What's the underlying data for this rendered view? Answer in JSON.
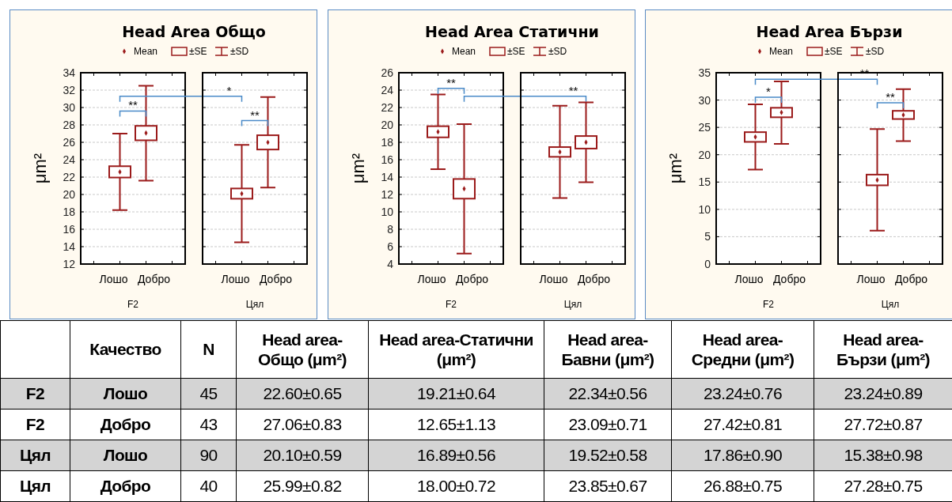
{
  "chart_data": [
    {
      "type": "box",
      "title": "Head Area Общо",
      "ylabel": "μm²",
      "xlabel": "F2",
      "categories": [
        "Лошо",
        "Добро"
      ],
      "color": "#9b1b1b",
      "ylim": [
        12,
        34
      ],
      "yticks": [
        12,
        14,
        16,
        18,
        20,
        22,
        24,
        26,
        28,
        30,
        32,
        34
      ],
      "grid": "y",
      "marker": "diamond",
      "boxes": [
        {
          "low": 18.2,
          "q1": 21.95,
          "q3": 23.25,
          "high": 27.0,
          "mean": 22.6
        },
        {
          "low": 21.6,
          "q1": 26.23,
          "q3": 27.89,
          "high": 32.5,
          "mean": 27.06
        }
      ],
      "annotations": [
        "Mean",
        "±SE",
        "±SD",
        "**",
        "*"
      ]
    },
    {
      "type": "box",
      "xlabel": "Цял",
      "categories": [
        "Лошо",
        "Добро"
      ],
      "color": "#9b1b1b",
      "ylim": [
        12,
        34
      ],
      "yticks": [
        12,
        14,
        16,
        18,
        20,
        22,
        24,
        26,
        28,
        30,
        32,
        34
      ],
      "grid": "y",
      "marker": "diamond",
      "tick_labels": "x",
      "boxes": [
        {
          "low": 14.5,
          "q1": 19.51,
          "q3": 20.69,
          "high": 25.7,
          "mean": 20.1
        },
        {
          "low": 20.8,
          "q1": 25.17,
          "q3": 26.81,
          "high": 31.2,
          "mean": 25.99
        }
      ],
      "annotations": [
        "**"
      ]
    },
    {
      "type": "box",
      "title": "Head Area Статични",
      "ylabel": "μm²",
      "xlabel": "F2",
      "categories": [
        "Лошо",
        "Добро"
      ],
      "color": "#9b1b1b",
      "ylim": [
        4,
        26
      ],
      "yticks": [
        4,
        6,
        8,
        10,
        12,
        14,
        16,
        18,
        20,
        22,
        24,
        26
      ],
      "grid": "y",
      "marker": "diamond",
      "boxes": [
        {
          "low": 14.9,
          "q1": 18.57,
          "q3": 19.85,
          "high": 23.5,
          "mean": 19.21
        },
        {
          "low": 5.2,
          "q1": 11.52,
          "q3": 13.78,
          "high": 20.1,
          "mean": 12.65
        }
      ],
      "annotations": [
        "Mean",
        "±SE",
        "±SD",
        "**",
        "**"
      ]
    },
    {
      "type": "box",
      "xlabel": "Цял",
      "categories": [
        "Лошо",
        "Добро"
      ],
      "color": "#9b1b1b",
      "ylim": [
        4,
        26
      ],
      "yticks": [
        4,
        6,
        8,
        10,
        12,
        14,
        16,
        18,
        20,
        22,
        24,
        26
      ],
      "grid": "y",
      "marker": "diamond",
      "tick_labels": "x",
      "boxes": [
        {
          "low": 11.6,
          "q1": 16.33,
          "q3": 17.45,
          "high": 22.2,
          "mean": 16.89
        },
        {
          "low": 13.4,
          "q1": 17.28,
          "q3": 18.72,
          "high": 22.6,
          "mean": 18.0
        }
      ]
    },
    {
      "type": "box",
      "title": "Head Area  Бързи",
      "ylabel": "μm²",
      "xlabel": "F2",
      "categories": [
        "Лошо",
        "Добро"
      ],
      "color": "#9b1b1b",
      "ylim": [
        0,
        35
      ],
      "yticks": [
        0,
        5,
        10,
        15,
        20,
        25,
        30,
        35
      ],
      "grid": "y",
      "marker": "diamond",
      "boxes": [
        {
          "low": 17.3,
          "q1": 22.35,
          "q3": 24.13,
          "high": 29.2,
          "mean": 23.24
        },
        {
          "low": 22.0,
          "q1": 26.85,
          "q3": 28.59,
          "high": 33.4,
          "mean": 27.72
        }
      ],
      "annotations": [
        "Mean",
        "±SE",
        "±SD",
        "*",
        "**"
      ]
    },
    {
      "type": "box",
      "xlabel": "Цял",
      "categories": [
        "Лошо",
        "Добро"
      ],
      "color": "#9b1b1b",
      "ylim": [
        0,
        35
      ],
      "yticks": [
        0,
        5,
        10,
        15,
        20,
        25,
        30,
        35
      ],
      "grid": "y",
      "marker": "diamond",
      "tick_labels": "x",
      "boxes": [
        {
          "low": 6.1,
          "q1": 14.4,
          "q3": 16.36,
          "high": 24.7,
          "mean": 15.38
        },
        {
          "low": 22.5,
          "q1": 26.53,
          "q3": 28.03,
          "high": 32.0,
          "mean": 27.28
        }
      ],
      "annotations": [
        "**"
      ]
    },
    {
      "type": "other",
      "annotations": [
        "Качество",
        "N",
        "Head area-Общо (μm²)",
        "Head area-Статични (μm²)",
        "Head area-Бавни (μm²)",
        "Head area-Средни (μm²)",
        "Head area-Бързи (μm²)",
        "F2",
        "Лошо",
        "45",
        "22.60±0.65",
        "19.21±0.64",
        "22.34±0.56",
        "23.24±0.76",
        "23.24±0.89",
        "F2",
        "Добро",
        "43",
        "27.06±0.83",
        "12.65±1.13",
        "23.09±0.71",
        "27.42±0.81",
        "27.72±0.87",
        "Цял",
        "Лошо",
        "90",
        "20.10±0.59",
        "16.89±0.56",
        "19.52±0.58",
        "17.86±0.90",
        "15.38±0.98",
        "Цял",
        "Добро",
        "40",
        "25.99±0.82",
        "18.00±0.72",
        "23.85±0.67",
        "26.88±0.75",
        "27.28±0.75"
      ]
    }
  ]
}
